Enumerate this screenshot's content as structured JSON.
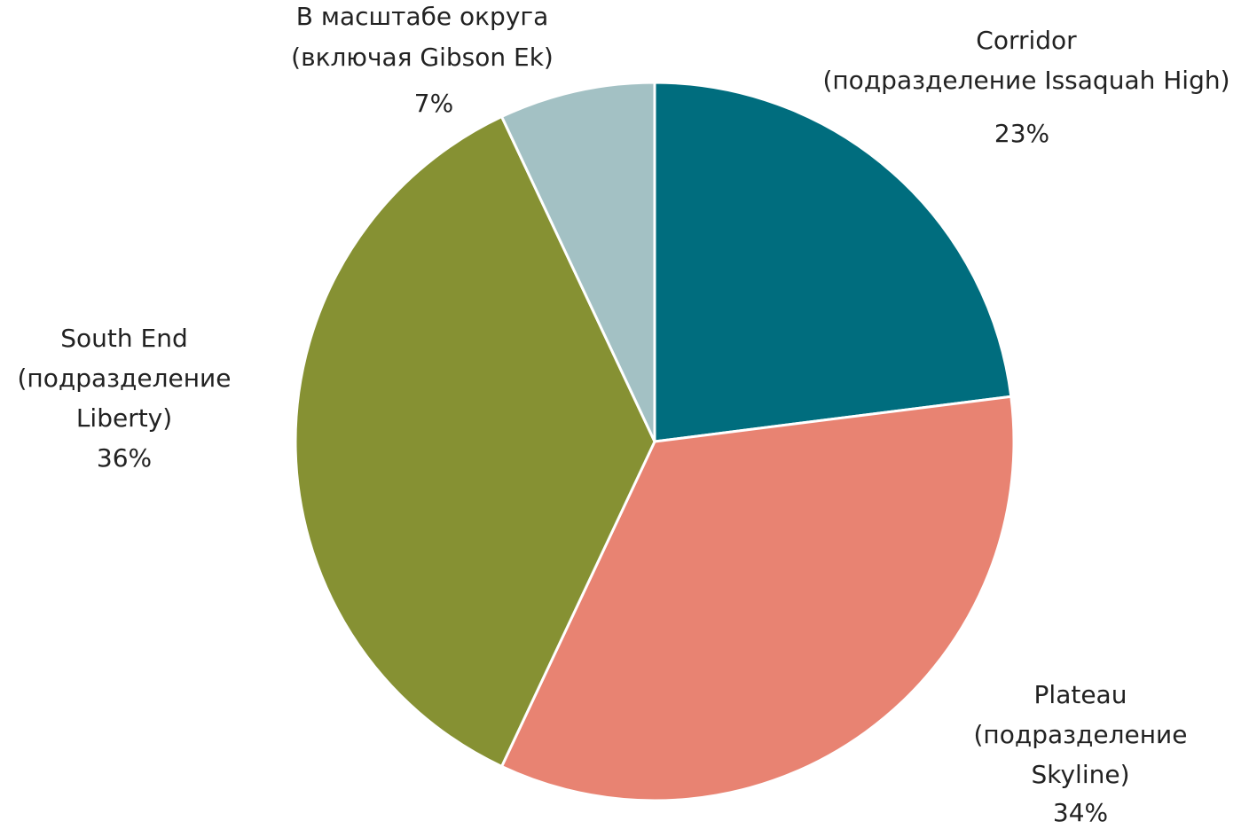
{
  "chart_data": {
    "type": "pie",
    "categories": [
      [
        "Corridor",
        "(подразделение Issaquah High)"
      ],
      [
        "Plateau",
        "(подразделение",
        "Skyline)"
      ],
      [
        "South End",
        "(подразделение",
        "Liberty)"
      ],
      [
        "В масштабе округа",
        "(включая Gibson Ek)"
      ]
    ],
    "values": [
      23,
      34,
      36,
      7
    ],
    "value_labels": [
      "23%",
      "34%",
      "36%",
      "7%"
    ],
    "colors": [
      "#006d7e",
      "#e88372",
      "#869133",
      "#a3c1c4"
    ]
  }
}
